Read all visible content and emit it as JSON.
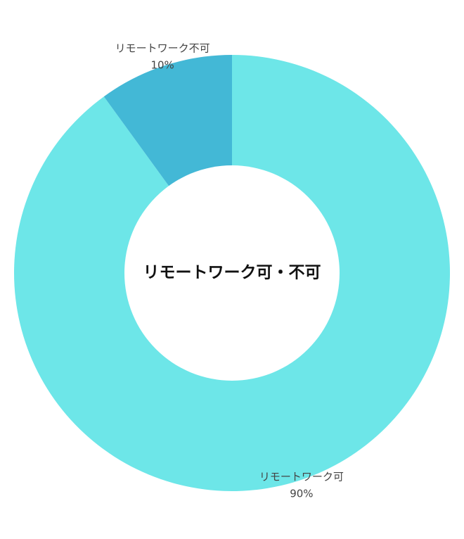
{
  "chart_data": {
    "type": "pie",
    "title": "リモートワーク可・不可",
    "categories": [
      "リモートワーク可",
      "リモートワーク不可"
    ],
    "values": [
      90,
      10
    ],
    "value_labels": [
      "90%",
      "10%"
    ],
    "colors": [
      "#6de6e8",
      "#43b8d6"
    ],
    "donut": true
  }
}
